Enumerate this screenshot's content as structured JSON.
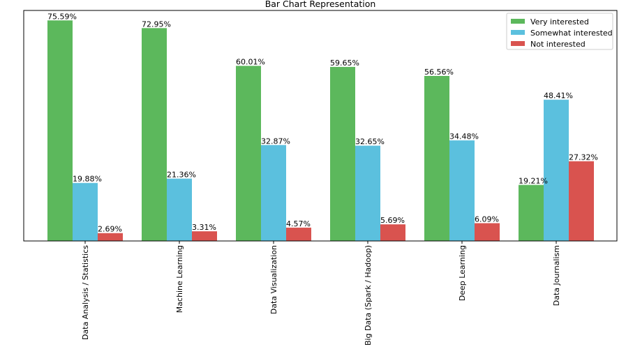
{
  "chart_data": {
    "type": "bar",
    "title": "Bar Chart Representation",
    "xlabel": "",
    "ylabel": "",
    "ylim": [
      0,
      79
    ],
    "grid": false,
    "legend_position": "top-right",
    "categories": [
      "Data Analysis / Statistics",
      "Machine Learning",
      "Data Visualization",
      "Big Data (Spark / Hadoop)",
      "Deep Learning",
      "Data Journalism"
    ],
    "series": [
      {
        "name": "Very interested",
        "color": "#5cb85c",
        "values": [
          75.59,
          72.95,
          60.01,
          59.65,
          56.56,
          19.21
        ]
      },
      {
        "name": "Somewhat interested",
        "color": "#5bc0de",
        "values": [
          19.88,
          21.36,
          32.87,
          32.65,
          34.48,
          48.41
        ]
      },
      {
        "name": "Not interested",
        "color": "#d9534f",
        "values": [
          2.69,
          3.31,
          4.57,
          5.69,
          6.09,
          27.32
        ]
      }
    ],
    "data_labels": [
      [
        "75.59%",
        "72.95%",
        "60.01%",
        "59.65%",
        "56.56%",
        "19.21%"
      ],
      [
        "19.88%",
        "21.36%",
        "32.87%",
        "32.65%",
        "34.48%",
        "48.41%"
      ],
      [
        "2.69%",
        "3.31%",
        "4.57%",
        "5.69%",
        "6.09%",
        "27.32%"
      ]
    ]
  }
}
